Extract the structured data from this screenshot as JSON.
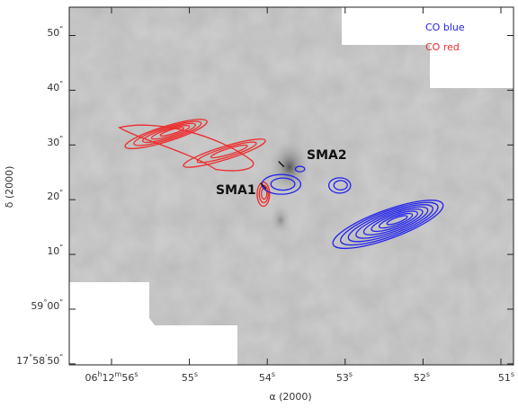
{
  "chart_data": {
    "type": "contour",
    "title": "",
    "xlabel": "α (2000)",
    "ylabel": "δ (2000)",
    "colors": {
      "blue": "#2222ee",
      "red": "#ee2a2a",
      "background": "#c8c8c8",
      "frame": "#222222"
    },
    "x_ticks": [
      {
        "ra_s": 56,
        "label_main": "06",
        "label_sup1": "h",
        "label_mid": "12",
        "label_sup2": "m",
        "label_end": "56",
        "label_sup3": "s"
      },
      {
        "ra_s": 55,
        "label_end": "55",
        "label_sup3": "s"
      },
      {
        "ra_s": 54,
        "label_end": "54",
        "label_sup3": "s"
      },
      {
        "ra_s": 53,
        "label_end": "53",
        "label_sup3": "s"
      },
      {
        "ra_s": 52,
        "label_end": "52",
        "label_sup3": "s"
      },
      {
        "ra_s": 51,
        "label_end": "51",
        "label_sup3": "s"
      }
    ],
    "y_ticks": [
      {
        "dec_arcsec": 50,
        "label": "50",
        "unit": "\""
      },
      {
        "dec_arcsec": 40,
        "label": "40",
        "unit": "\""
      },
      {
        "dec_arcsec": 30,
        "label": "30",
        "unit": "\""
      },
      {
        "dec_arcsec": 20,
        "label": "20",
        "unit": "\""
      },
      {
        "dec_arcsec": 10,
        "label": "10",
        "unit": "\""
      },
      {
        "dec_arcsec": 0,
        "label": "59",
        "sup1": "°",
        "label2": "00",
        "unit": "\""
      },
      {
        "dec_arcsec": -10,
        "label": "17",
        "sup1": "°",
        "label2": "58",
        "sup2": "'",
        "label3": "50",
        "unit": "\""
      }
    ],
    "legend": {
      "position": "top-right",
      "items": [
        {
          "label": "CO blue",
          "color": "#2222ee"
        },
        {
          "label": "CO red",
          "color": "#ee2a2a"
        }
      ]
    },
    "sources": [
      {
        "name": "SMA1",
        "ra_s": 54.05,
        "dec_arcsec": 22.5
      },
      {
        "name": "SMA2",
        "ra_s": 53.82,
        "dec_arcsec": 26.5
      }
    ],
    "lobes": [
      {
        "series": "CO red",
        "color": "#ee2a2a",
        "center_ra_s": 55.3,
        "center_dec": 32.0,
        "a": 0.55,
        "b": 1.4,
        "angle": -0.3,
        "levels": 5
      },
      {
        "series": "CO red",
        "color": "#ee2a2a",
        "center_ra_s": 54.55,
        "center_dec": 28.5,
        "a": 0.55,
        "b": 1.2,
        "angle": -0.3,
        "levels": 3
      },
      {
        "series": "CO red",
        "color": "#ee2a2a",
        "center_ra_s": 54.05,
        "center_dec": 21.0,
        "a": 0.08,
        "b": 2.2,
        "angle": 0,
        "levels": 3
      },
      {
        "series": "CO blue",
        "color": "#2222ee",
        "center_ra_s": 53.82,
        "center_dec": 22.8,
        "a": 0.25,
        "b": 1.8,
        "angle": 0,
        "levels": 2
      },
      {
        "series": "CO blue",
        "color": "#2222ee",
        "center_ra_s": 53.58,
        "center_dec": 25.6,
        "a": 0.06,
        "b": 0.5,
        "angle": 0,
        "levels": 1
      },
      {
        "series": "CO blue",
        "color": "#2222ee",
        "center_ra_s": 53.07,
        "center_dec": 22.6,
        "a": 0.14,
        "b": 1.4,
        "angle": 0,
        "levels": 2
      },
      {
        "series": "CO blue",
        "color": "#2222ee",
        "center_ra_s": 52.45,
        "center_dec": 15.5,
        "a": 0.75,
        "b": 2.6,
        "angle": -0.35,
        "levels": 8
      }
    ],
    "red_outflow_envelope": {
      "ra_from": 55.9,
      "ra_to": 54.2,
      "dec_from": 33.5,
      "dec_to": 26.5
    }
  }
}
